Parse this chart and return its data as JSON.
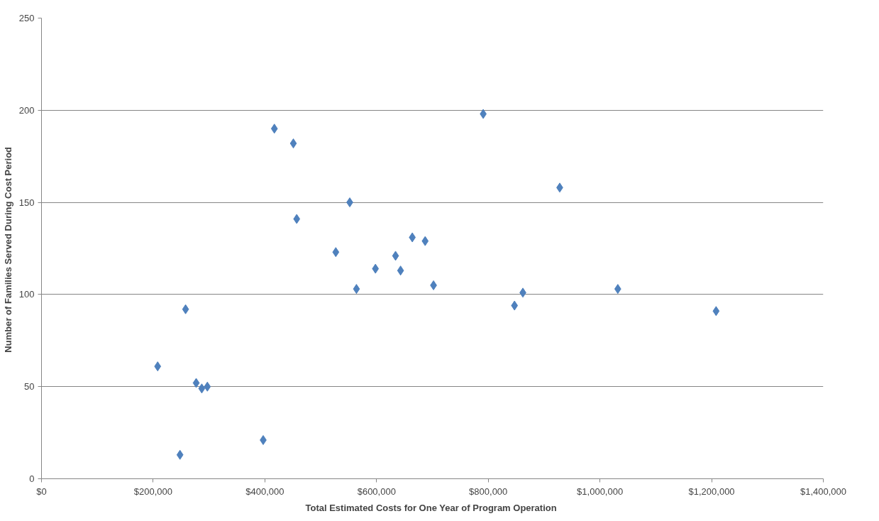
{
  "chart_data": {
    "type": "scatter",
    "xlabel": "Total Estimated Costs for  One Year of Program Operation",
    "ylabel": "Number of Families  Served During Cost Period",
    "x": [
      208000,
      248000,
      258000,
      277000,
      287000,
      297000,
      397000,
      417000,
      451000,
      457000,
      527000,
      552000,
      564000,
      598000,
      634000,
      643000,
      664000,
      687000,
      702000,
      791000,
      847000,
      862000,
      928000,
      1032000,
      1208000
    ],
    "series": [
      {
        "color": "#4f81bd",
        "values": [
          61,
          13,
          92,
          52,
          49,
          50,
          21,
          190,
          182,
          141,
          123,
          150,
          103,
          114,
          121,
          113,
          131,
          129,
          105,
          198,
          94,
          101,
          158,
          103,
          91
        ]
      }
    ],
    "xlim": [
      0,
      1400000
    ],
    "ylim": [
      0,
      250
    ],
    "xticks": [
      {
        "value": 0,
        "label": "$0"
      },
      {
        "value": 200000,
        "label": "$200,000"
      },
      {
        "value": 400000,
        "label": "$400,000"
      },
      {
        "value": 600000,
        "label": "$600,000"
      },
      {
        "value": 800000,
        "label": "$800,000"
      },
      {
        "value": 1000000,
        "label": "$1,000,000"
      },
      {
        "value": 1200000,
        "label": "$1,200,000"
      },
      {
        "value": 1400000,
        "label": "$1,400,000"
      }
    ],
    "yticks": [
      0,
      50,
      100,
      150,
      200,
      250
    ],
    "grid": "y",
    "marker": "diamond"
  }
}
